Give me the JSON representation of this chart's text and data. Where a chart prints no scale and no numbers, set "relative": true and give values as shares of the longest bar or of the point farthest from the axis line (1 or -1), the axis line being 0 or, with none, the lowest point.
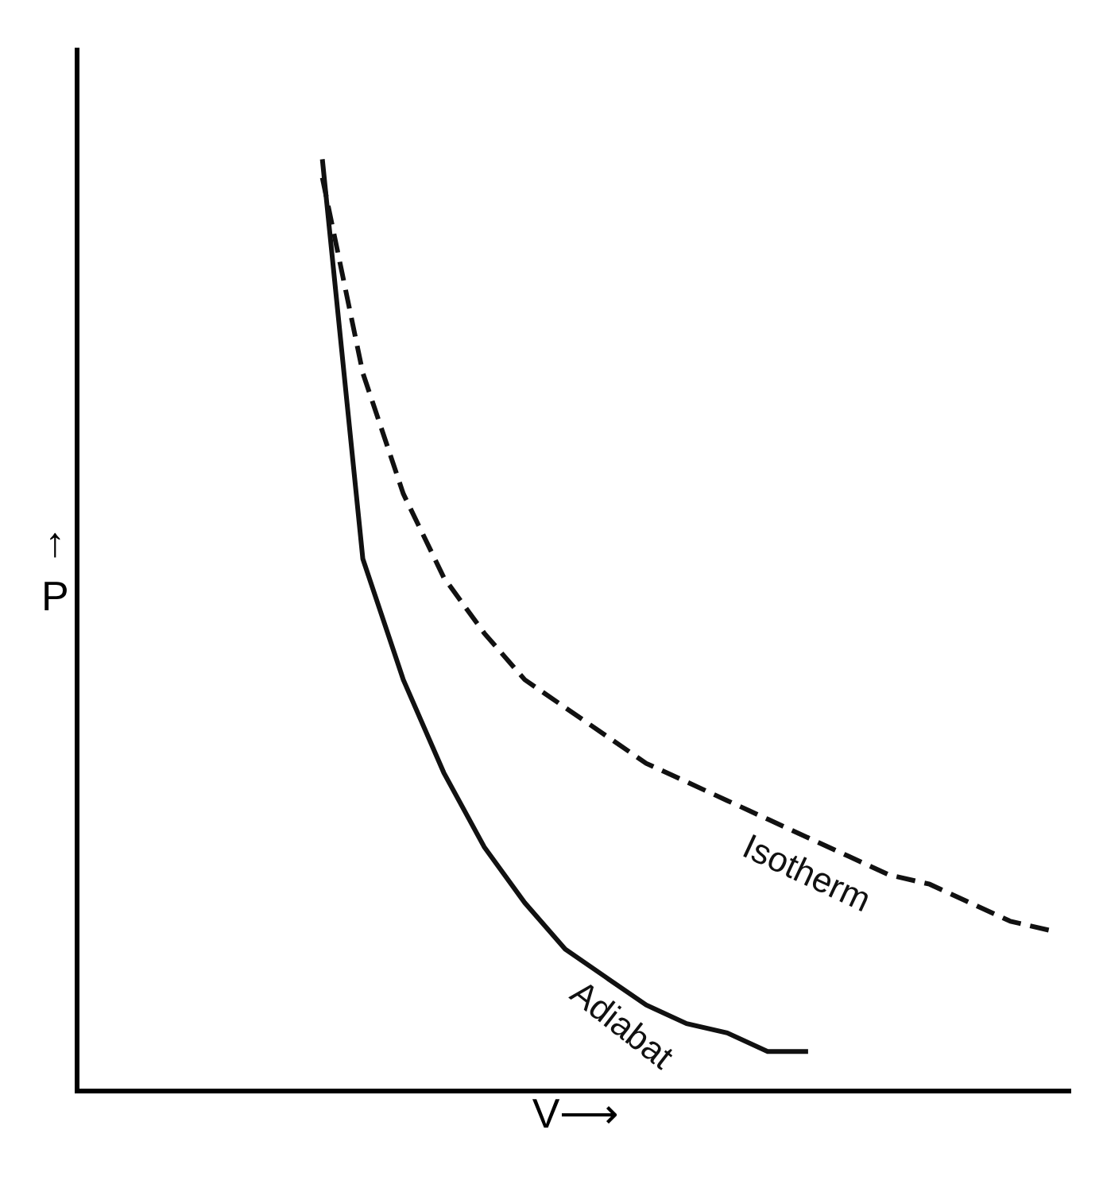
{
  "chart_data": {
    "type": "line",
    "relative": true,
    "xlabel": "V⟶",
    "annotations": [
      "↑\nP"
    ],
    "categories": [
      null,
      null,
      null,
      null,
      null,
      null,
      null,
      null,
      null,
      null,
      null,
      null,
      null,
      null,
      null,
      null,
      null,
      null,
      null
    ],
    "series": [
      {
        "name": "Isotherm",
        "color": "#111111",
        "line_style": "dashed",
        "values": [
          0.98,
          0.77,
          0.64,
          0.55,
          0.49,
          0.44,
          0.41,
          0.38,
          0.35,
          0.33,
          0.31,
          0.29,
          0.27,
          0.25,
          0.23,
          0.22,
          0.2,
          0.18,
          0.17
        ]
      },
      {
        "name": "Adiabat",
        "color": "#111111",
        "line_style": "solid",
        "values": [
          1.0,
          0.57,
          0.44,
          0.34,
          0.26,
          0.2,
          0.15,
          0.12,
          0.09,
          0.07,
          0.06,
          0.04,
          0.04,
          null,
          null,
          null,
          null,
          null,
          null
        ]
      }
    ],
    "legend": false,
    "marker": "none",
    "tick_labels": false
  }
}
